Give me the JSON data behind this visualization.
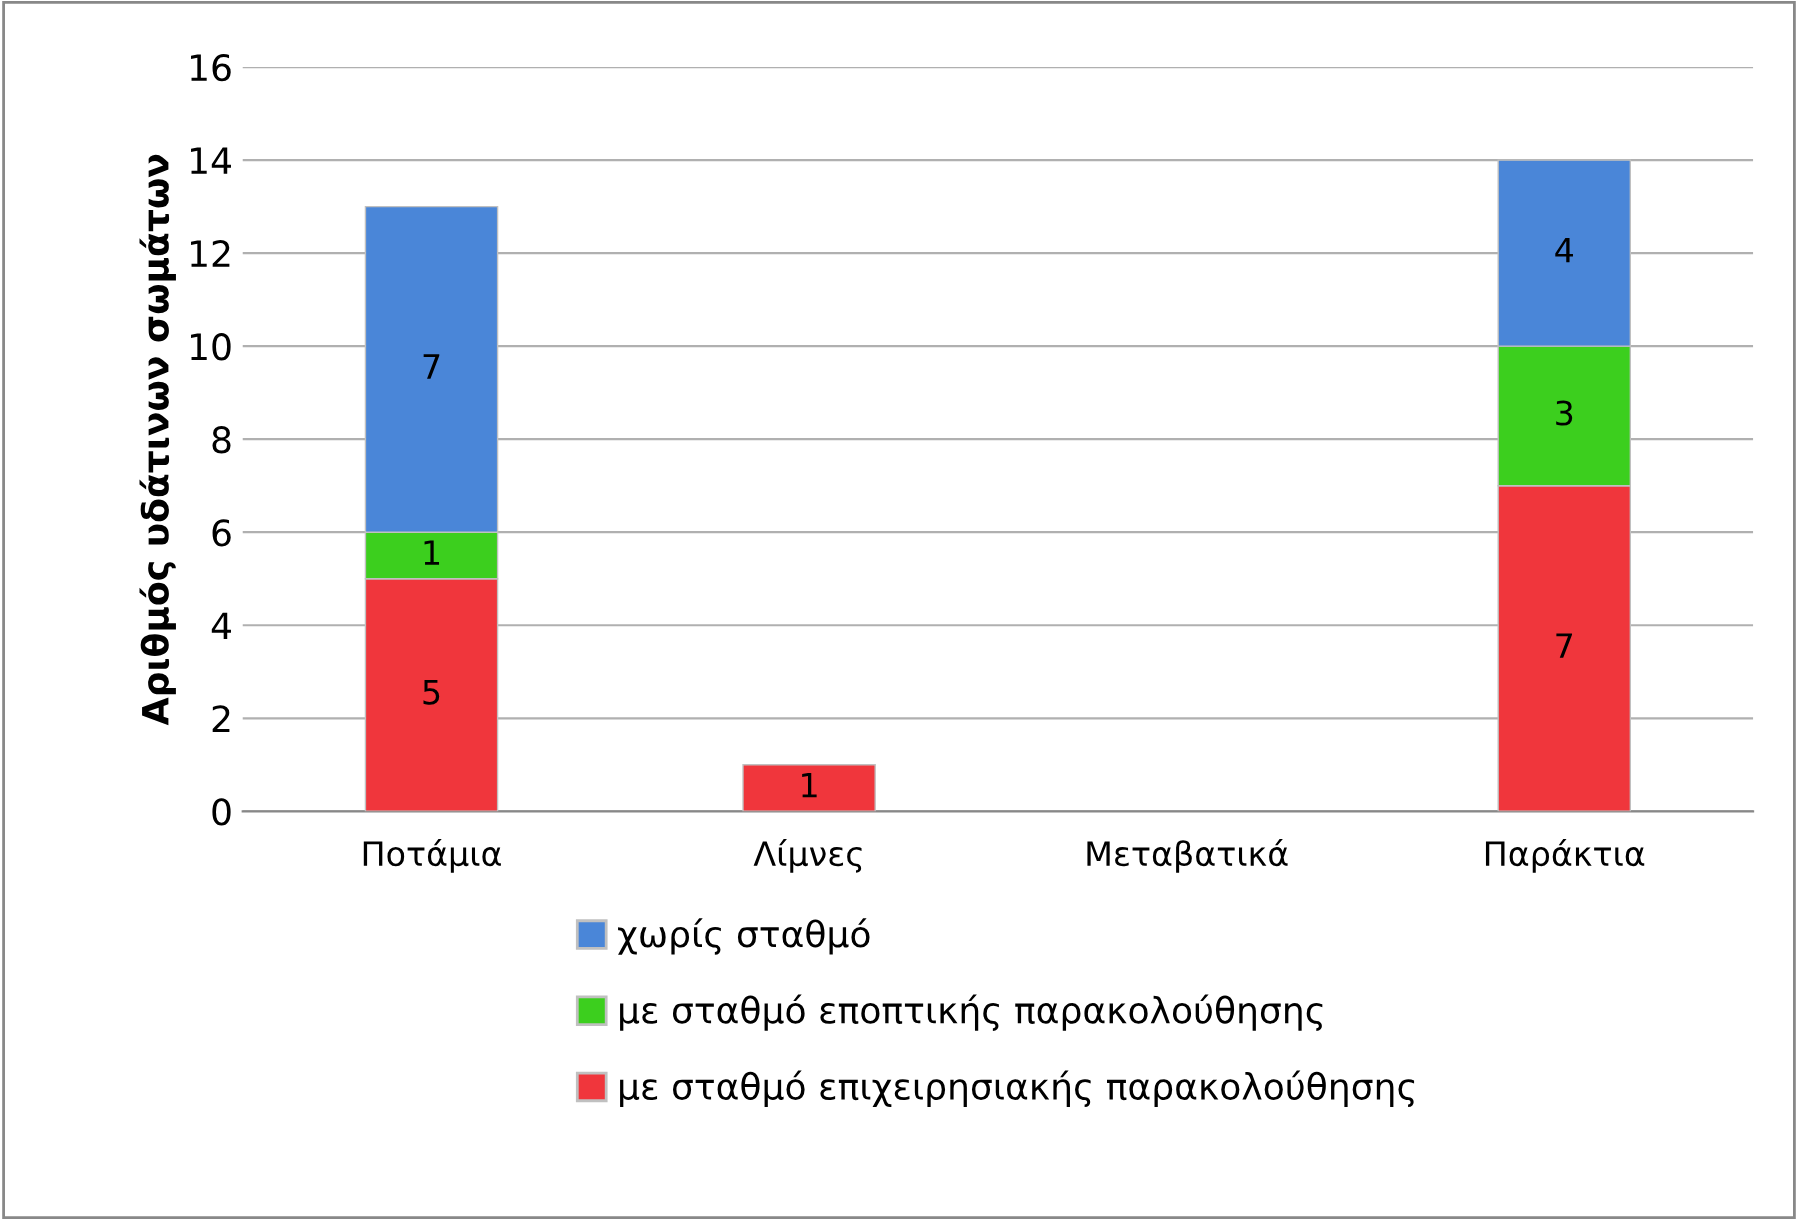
{
  "chart_data": {
    "type": "bar",
    "stacked": true,
    "ylabel": "Αριθμός υδάτινων σωμάτων",
    "categories": [
      "Ποτάμια",
      "Λίμνες",
      "Μεταβατικά",
      "Παράκτια"
    ],
    "series": [
      {
        "name": "με σταθμό επιχειρησιακής παρακολούθησης",
        "color": "#f0363c",
        "values": [
          5,
          1,
          null,
          7
        ],
        "value_labels": [
          "5",
          "1",
          null,
          "7"
        ]
      },
      {
        "name": "με σταθμό εποπτικής παρακολούθησης",
        "color": "#3ccf1e",
        "values": [
          1,
          null,
          null,
          3
        ],
        "value_labels": [
          "1",
          null,
          null,
          "3"
        ]
      },
      {
        "name": "χωρίς σταθμό",
        "color": "#4a86d8",
        "values": [
          7,
          null,
          null,
          4
        ],
        "value_labels": [
          "7",
          null,
          null,
          "4"
        ]
      }
    ],
    "ylim": [
      0,
      16
    ],
    "yticks": [
      0,
      2,
      4,
      6,
      8,
      10,
      12,
      14,
      16
    ],
    "grid": "y",
    "legend": "bottom"
  }
}
